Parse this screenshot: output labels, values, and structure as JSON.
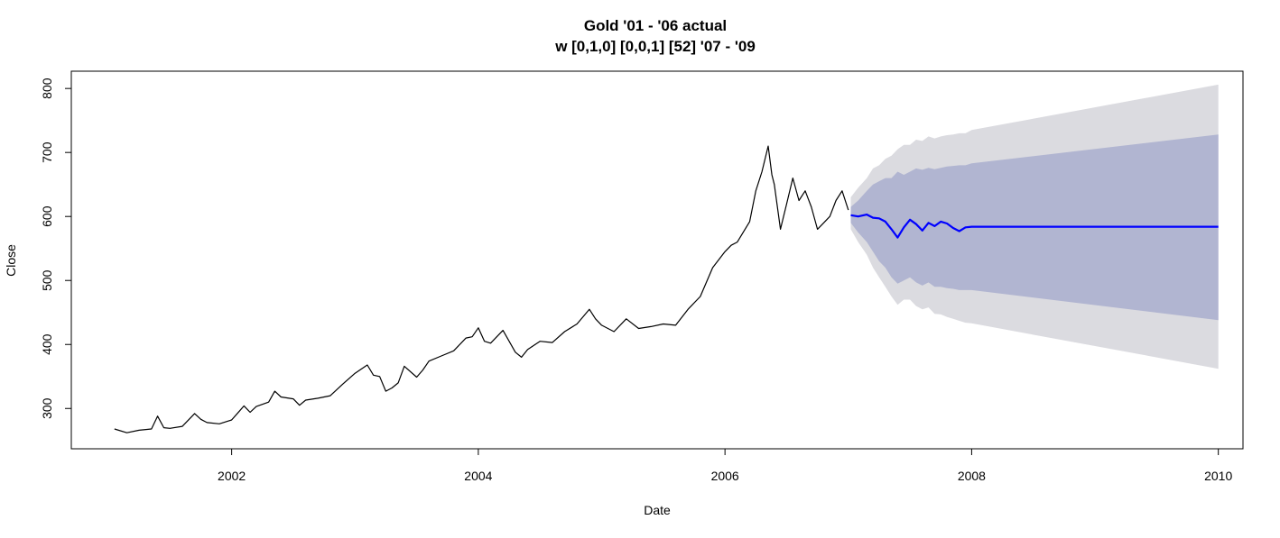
{
  "chart_data": {
    "type": "line",
    "title": "Gold '01 - '06 actual",
    "subtitle": "w [0,1,0] [0,0,1] [52] '07 - '09",
    "xlabel": "Date",
    "ylabel": "Close",
    "xlim": [
      2000.7,
      2010.2
    ],
    "ylim": [
      237,
      827
    ],
    "grid": false,
    "x_ticks": [
      2002,
      2004,
      2006,
      2008,
      2010
    ],
    "x_tick_labels": [
      "2002",
      "2004",
      "2006",
      "2008",
      "2010"
    ],
    "y_ticks": [
      300,
      400,
      500,
      600,
      700,
      800
    ],
    "y_tick_labels": [
      "300",
      "400",
      "500",
      "600",
      "700",
      "800"
    ],
    "colors": {
      "actual": "#000000",
      "forecast": "#0000ff",
      "band_95": "#dbdbe0",
      "band_80": "#b1b5d1"
    },
    "actual": {
      "x": [
        2001.05,
        2001.15,
        2001.25,
        2001.35,
        2001.4,
        2001.45,
        2001.5,
        2001.6,
        2001.7,
        2001.75,
        2001.8,
        2001.9,
        2002.0,
        2002.05,
        2002.1,
        2002.15,
        2002.2,
        2002.3,
        2002.35,
        2002.4,
        2002.5,
        2002.55,
        2002.6,
        2002.7,
        2002.8,
        2002.9,
        2003.0,
        2003.1,
        2003.15,
        2003.2,
        2003.25,
        2003.3,
        2003.35,
        2003.4,
        2003.5,
        2003.55,
        2003.6,
        2003.7,
        2003.8,
        2003.9,
        2003.95,
        2004.0,
        2004.05,
        2004.1,
        2004.2,
        2004.3,
        2004.35,
        2004.4,
        2004.5,
        2004.6,
        2004.7,
        2004.8,
        2004.9,
        2004.95,
        2005.0,
        2005.1,
        2005.2,
        2005.3,
        2005.4,
        2005.5,
        2005.6,
        2005.7,
        2005.8,
        2005.9,
        2006.0,
        2006.05,
        2006.1,
        2006.2,
        2006.25,
        2006.3,
        2006.35,
        2006.38,
        2006.4,
        2006.45,
        2006.5,
        2006.55,
        2006.6,
        2006.65,
        2006.7,
        2006.75,
        2006.8,
        2006.85,
        2006.9,
        2006.95,
        2007.0
      ],
      "y": [
        268,
        262,
        266,
        268,
        288,
        270,
        269,
        272,
        292,
        283,
        278,
        276,
        282,
        293,
        304,
        294,
        303,
        310,
        327,
        318,
        315,
        305,
        313,
        316,
        320,
        338,
        355,
        368,
        352,
        350,
        327,
        332,
        340,
        366,
        349,
        360,
        374,
        382,
        390,
        410,
        412,
        426,
        405,
        402,
        422,
        388,
        380,
        392,
        405,
        403,
        420,
        432,
        455,
        440,
        430,
        420,
        440,
        425,
        428,
        432,
        430,
        455,
        475,
        520,
        545,
        555,
        560,
        592,
        640,
        670,
        710,
        665,
        650,
        580,
        620,
        660,
        625,
        640,
        615,
        580,
        590,
        600,
        625,
        640,
        610
      ]
    },
    "forecast": {
      "x": [
        2007.02,
        2007.08,
        2007.15,
        2007.2,
        2007.25,
        2007.3,
        2007.35,
        2007.4,
        2007.45,
        2007.5,
        2007.55,
        2007.6,
        2007.65,
        2007.7,
        2007.75,
        2007.8,
        2007.85,
        2007.9,
        2007.95,
        2008.0,
        2010.0
      ],
      "y": [
        602,
        600,
        603,
        598,
        597,
        592,
        580,
        567,
        583,
        595,
        588,
        578,
        590,
        585,
        592,
        589,
        582,
        577,
        583,
        584,
        584
      ],
      "lower_80": [
        590,
        575,
        560,
        545,
        530,
        520,
        505,
        495,
        500,
        505,
        497,
        492,
        497,
        490,
        490,
        488,
        487,
        485,
        485,
        485,
        438
      ],
      "upper_80": [
        615,
        625,
        640,
        650,
        655,
        660,
        660,
        670,
        665,
        670,
        675,
        673,
        676,
        674,
        676,
        678,
        679,
        680,
        680,
        683,
        728
      ],
      "lower_95": [
        580,
        560,
        540,
        520,
        505,
        490,
        475,
        462,
        470,
        470,
        460,
        455,
        458,
        448,
        447,
        443,
        440,
        437,
        434,
        433,
        362
      ],
      "upper_95": [
        630,
        645,
        660,
        675,
        680,
        690,
        695,
        705,
        712,
        712,
        720,
        718,
        725,
        722,
        725,
        727,
        728,
        730,
        730,
        735,
        806
      ]
    }
  }
}
